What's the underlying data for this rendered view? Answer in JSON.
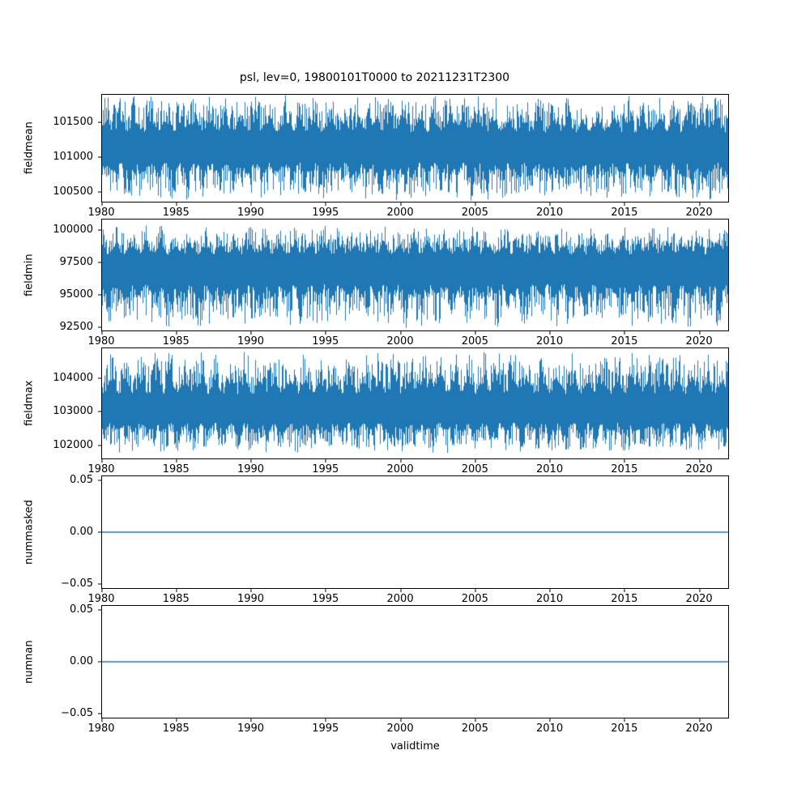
{
  "figure": {
    "title": "psl, lev=0, 19800101T0000 to 20211231T2300",
    "xlabel": "validtime",
    "line_color": "#1f77b4",
    "background": "#ffffff"
  },
  "chart_data": [
    {
      "type": "line",
      "ylabel": "fieldmean",
      "x_range": [
        1980,
        2022
      ],
      "x_ticks": [
        "1980",
        "1985",
        "1990",
        "1995",
        "2000",
        "2005",
        "2010",
        "2015",
        "2020"
      ],
      "x_tick_values": [
        1980,
        1985,
        1990,
        1995,
        2000,
        2005,
        2010,
        2015,
        2020
      ],
      "y_ticks": [
        "100500",
        "101000",
        "101500"
      ],
      "y_tick_values": [
        100500,
        101000,
        101500
      ],
      "ylim": [
        100350,
        101900
      ],
      "series": [
        {
          "name": "fieldmean",
          "style": "noisy-band",
          "approx_center": 101150,
          "approx_min": 100420,
          "approx_max": 101830
        }
      ]
    },
    {
      "type": "line",
      "ylabel": "fieldmin",
      "x_range": [
        1980,
        2022
      ],
      "x_ticks": [
        "1980",
        "1985",
        "1990",
        "1995",
        "2000",
        "2005",
        "2010",
        "2015",
        "2020"
      ],
      "x_tick_values": [
        1980,
        1985,
        1990,
        1995,
        2000,
        2005,
        2010,
        2015,
        2020
      ],
      "y_ticks": [
        "92500",
        "95000",
        "97500",
        "100000"
      ],
      "y_tick_values": [
        92500,
        95000,
        97500,
        100000
      ],
      "ylim": [
        92200,
        100900
      ],
      "series": [
        {
          "name": "fieldmin",
          "style": "noisy-band",
          "approx_center": 97300,
          "approx_min": 92750,
          "approx_max": 100150
        }
      ]
    },
    {
      "type": "line",
      "ylabel": "fieldmax",
      "x_range": [
        1980,
        2022
      ],
      "x_ticks": [
        "1980",
        "1985",
        "1990",
        "1995",
        "2000",
        "2005",
        "2010",
        "2015",
        "2020"
      ],
      "x_tick_values": [
        1980,
        1985,
        1990,
        1995,
        2000,
        2005,
        2010,
        2015,
        2020
      ],
      "y_ticks": [
        "102000",
        "103000",
        "104000"
      ],
      "y_tick_values": [
        102000,
        103000,
        104000
      ],
      "ylim": [
        101600,
        104900
      ],
      "series": [
        {
          "name": "fieldmax",
          "style": "noisy-band",
          "approx_center": 103050,
          "approx_min": 101850,
          "approx_max": 104650
        }
      ]
    },
    {
      "type": "line",
      "ylabel": "nummasked",
      "x_range": [
        1980,
        2022
      ],
      "x_ticks": [
        "1980",
        "1985",
        "1990",
        "1995",
        "2000",
        "2005",
        "2010",
        "2015",
        "2020"
      ],
      "x_tick_values": [
        1980,
        1985,
        1990,
        1995,
        2000,
        2005,
        2010,
        2015,
        2020
      ],
      "y_ticks": [
        "−0.05",
        "0.00",
        "0.05"
      ],
      "y_tick_values": [
        -0.05,
        0.0,
        0.05
      ],
      "ylim": [
        -0.055,
        0.055
      ],
      "series": [
        {
          "name": "nummasked",
          "style": "constant",
          "value": 0
        }
      ]
    },
    {
      "type": "line",
      "ylabel": "numnan",
      "x_range": [
        1980,
        2022
      ],
      "x_ticks": [
        "1980",
        "1985",
        "1990",
        "1995",
        "2000",
        "2005",
        "2010",
        "2015",
        "2020"
      ],
      "x_tick_values": [
        1980,
        1985,
        1990,
        1995,
        2000,
        2005,
        2010,
        2015,
        2020
      ],
      "y_ticks": [
        "−0.05",
        "0.00",
        "0.05"
      ],
      "y_tick_values": [
        -0.05,
        0.0,
        0.05
      ],
      "ylim": [
        -0.055,
        0.055
      ],
      "series": [
        {
          "name": "numnan",
          "style": "constant",
          "value": 0
        }
      ]
    }
  ]
}
